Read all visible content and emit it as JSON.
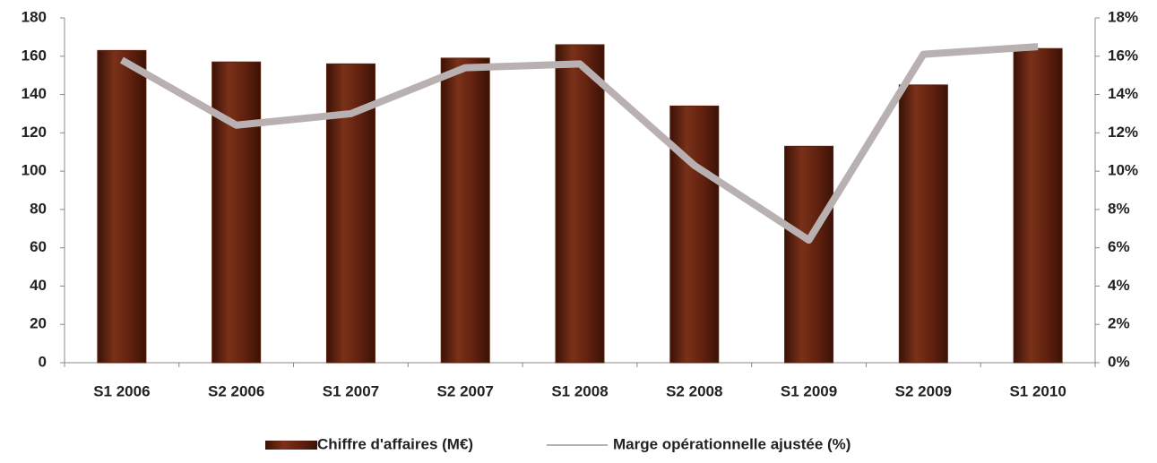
{
  "chart_data": {
    "type": "bar-line",
    "categories": [
      "S1 2006",
      "S2 2006",
      "S1 2007",
      "S2 2007",
      "S1 2008",
      "S2 2008",
      "S1 2009",
      "S2 2009",
      "S1 2010"
    ],
    "series": [
      {
        "name": "Chiffre d'affaires (M€)",
        "type": "bar",
        "color": "#5e200e",
        "values": [
          163,
          157,
          156,
          159,
          166,
          134,
          113,
          145,
          164
        ]
      },
      {
        "name": "Marge opérationnelle ajustée (%)",
        "type": "line",
        "axis": "y2",
        "color": "#b9b1b1",
        "values": [
          15.8,
          12.4,
          13.0,
          15.4,
          15.6,
          10.3,
          6.4,
          16.1,
          16.5
        ]
      }
    ],
    "ylim": [
      0,
      180
    ],
    "yticks": [
      0,
      20,
      40,
      60,
      80,
      100,
      120,
      140,
      160,
      180
    ],
    "y2lim": [
      0,
      18
    ],
    "y2ticks": [
      {
        "value": 0,
        "label": "0%"
      },
      {
        "value": 2,
        "label": "2%"
      },
      {
        "value": 4,
        "label": "4%"
      },
      {
        "value": 6,
        "label": "6%"
      },
      {
        "value": 8,
        "label": "8%"
      },
      {
        "value": 10,
        "label": "10%"
      },
      {
        "value": 12,
        "label": "12%"
      },
      {
        "value": 14,
        "label": "14%"
      },
      {
        "value": 16,
        "label": "16%"
      },
      {
        "value": 18,
        "label": "18%"
      }
    ],
    "legend": "bottom"
  }
}
